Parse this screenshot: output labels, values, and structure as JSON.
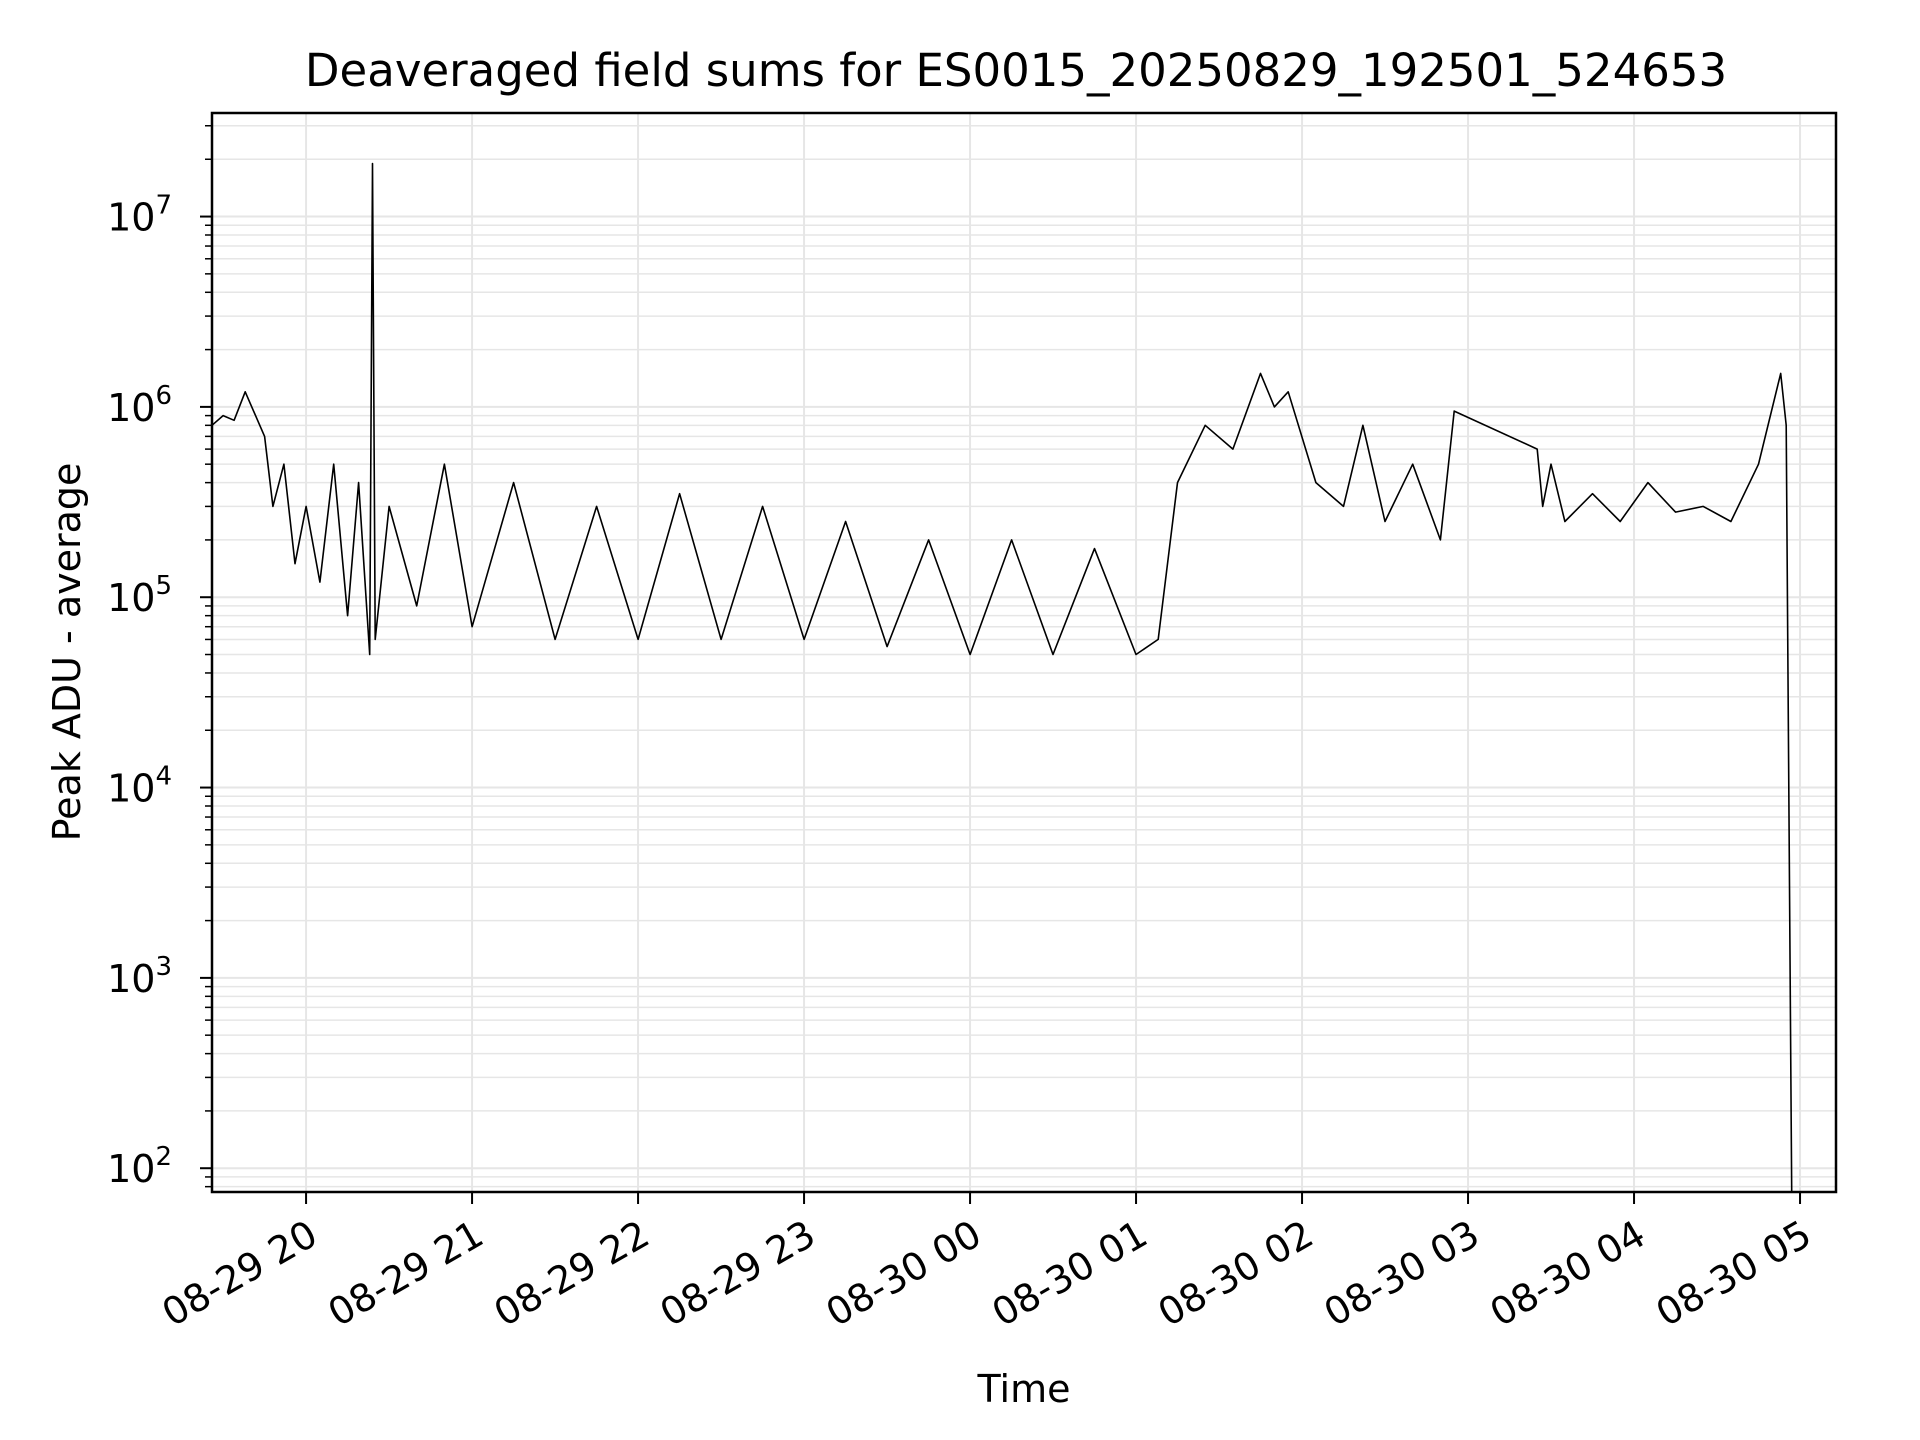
{
  "chart_data": {
    "type": "line",
    "title": "Deaveraged field sums for ES0015_20250829_192501_524653",
    "xlabel": "Time",
    "ylabel": "Peak ADU - average",
    "y_scale": "log",
    "grid": true,
    "line_color": "#000000",
    "grid_color": "#e6e6e6",
    "xlim": [
      "2025-08-29 19:26",
      "2025-08-30 05:13"
    ],
    "ylim": [
      75,
      35000000
    ],
    "x_ticks": [
      "08-29 20",
      "08-29 21",
      "08-29 22",
      "08-29 23",
      "08-30 00",
      "08-30 01",
      "08-30 02",
      "08-30 03",
      "08-30 04",
      "08-30 05"
    ],
    "y_ticks": [
      {
        "base": "10",
        "exp": "2",
        "value": 100
      },
      {
        "base": "10",
        "exp": "3",
        "value": 1000
      },
      {
        "base": "10",
        "exp": "4",
        "value": 10000
      },
      {
        "base": "10",
        "exp": "5",
        "value": 100000
      },
      {
        "base": "10",
        "exp": "6",
        "value": 1000000
      },
      {
        "base": "10",
        "exp": "7",
        "value": 10000000
      }
    ],
    "series": [
      {
        "x": [
          "2025-08-29 19:26",
          "2025-08-29 19:30",
          "2025-08-29 19:34",
          "2025-08-29 19:38",
          "2025-08-29 19:45",
          "2025-08-29 19:48",
          "2025-08-29 19:52",
          "2025-08-29 19:56",
          "2025-08-29 20:00",
          "2025-08-29 20:05",
          "2025-08-29 20:10",
          "2025-08-29 20:15",
          "2025-08-29 20:19",
          "2025-08-29 20:23",
          "2025-08-29 20:24",
          "2025-08-29 20:25",
          "2025-08-29 20:30",
          "2025-08-29 20:40",
          "2025-08-29 20:50",
          "2025-08-29 21:00",
          "2025-08-29 21:15",
          "2025-08-29 21:30",
          "2025-08-29 21:45",
          "2025-08-29 22:00",
          "2025-08-29 22:15",
          "2025-08-29 22:30",
          "2025-08-29 22:45",
          "2025-08-29 23:00",
          "2025-08-29 23:15",
          "2025-08-29 23:30",
          "2025-08-29 23:45",
          "2025-08-30 00:00",
          "2025-08-30 00:15",
          "2025-08-30 00:30",
          "2025-08-30 00:45",
          "2025-08-30 01:00",
          "2025-08-30 01:08",
          "2025-08-30 01:15",
          "2025-08-30 01:25",
          "2025-08-30 01:35",
          "2025-08-30 01:45",
          "2025-08-30 01:50",
          "2025-08-30 01:55",
          "2025-08-30 02:05",
          "2025-08-30 02:15",
          "2025-08-30 02:22",
          "2025-08-30 02:30",
          "2025-08-30 02:40",
          "2025-08-30 02:50",
          "2025-08-30 02:55",
          "2025-08-30 03:25",
          "2025-08-30 03:27",
          "2025-08-30 03:30",
          "2025-08-30 03:35",
          "2025-08-30 03:45",
          "2025-08-30 03:55",
          "2025-08-30 04:05",
          "2025-08-30 04:15",
          "2025-08-30 04:25",
          "2025-08-30 04:35",
          "2025-08-30 04:45",
          "2025-08-30 04:53",
          "2025-08-30 04:55",
          "2025-08-30 04:57"
        ],
        "y": [
          800000,
          900000,
          850000,
          1200000,
          700000,
          300000,
          500000,
          150000,
          300000,
          120000,
          500000,
          80000,
          400000,
          50000,
          19000000,
          60000,
          300000,
          90000,
          500000,
          70000,
          400000,
          60000,
          300000,
          60000,
          350000,
          60000,
          300000,
          60000,
          250000,
          55000,
          200000,
          50000,
          200000,
          50000,
          180000,
          50000,
          60000,
          400000,
          800000,
          600000,
          1500000,
          1000000,
          1200000,
          400000,
          300000,
          800000,
          250000,
          500000,
          200000,
          950000,
          600000,
          300000,
          500000,
          250000,
          350000,
          250000,
          400000,
          280000,
          300000,
          250000,
          500000,
          1500000,
          800000,
          75
        ]
      }
    ]
  }
}
